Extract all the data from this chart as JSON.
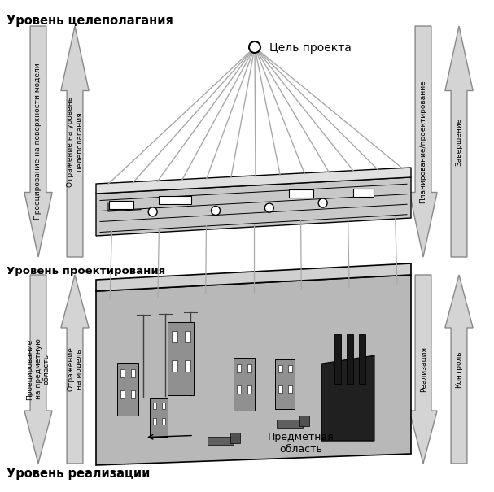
{
  "bg_color": "#ffffff",
  "arrow_fill": "#d4d4d4",
  "arrow_edge": "#888888",
  "level_goal_text": "Уровень целеполагания",
  "level_design_text": "Уровень проектирования",
  "level_real_text": "Уровень реализации",
  "goal_text": "Цель проекта",
  "subject_text": "Предметная\nобласть",
  "arrow_left1_text": "Проецирование на поверхности модели",
  "arrow_left2_text": "Отражение на уровень\nцелеполагания",
  "arrow_left3_text": "Проецирование\nна предметную\nобласть",
  "arrow_left4_text": "Отражение\nна модель",
  "arrow_right1_text": "Планирование/проектирование",
  "arrow_right2_text": "Завершение",
  "arrow_right3_text": "Реализация",
  "arrow_right4_text": "Контроль",
  "ray_color": "#a8a8a8",
  "num_rays": 13
}
